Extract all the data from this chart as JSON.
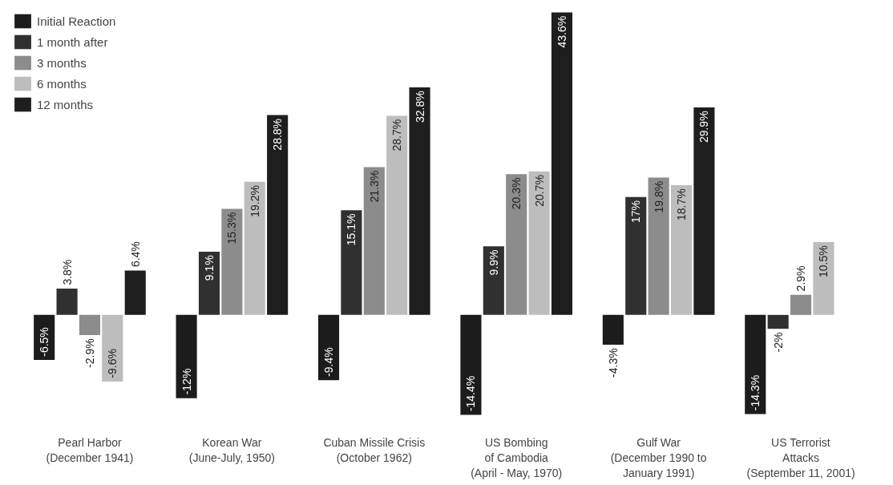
{
  "chart_data": {
    "type": "bar",
    "categories": [
      "Pearl Harbor\n(December 1941)",
      "Korean War\n(June-July, 1950)",
      "Cuban Missile Crisis\n(October 1962)",
      "US Bombing\nof Cambodia\n(April - May, 1970)",
      "Gulf War\n(December 1990 to\nJanuary 1991)",
      "US Terrorist\nAttacks\n(September 11, 2001)"
    ],
    "series": [
      {
        "name": "Initial Reaction",
        "color": "#1c1c1c",
        "values": [
          -6.5,
          -12,
          -9.4,
          -14.4,
          -4.3,
          -14.3
        ],
        "value_labels": [
          "-6.5%",
          "-12%",
          "-9.4%",
          "-14.4%",
          "-4.3%",
          "-14.3%"
        ]
      },
      {
        "name": "1 month after",
        "color": "#303030",
        "values": [
          3.8,
          9.1,
          15.1,
          9.9,
          17,
          -2
        ],
        "value_labels": [
          "3.8%",
          "9.1%",
          "15.1%",
          "9.9%",
          "17%",
          "-2%"
        ]
      },
      {
        "name": "3 months",
        "color": "#8c8c8c",
        "values": [
          -2.9,
          15.3,
          21.3,
          20.3,
          19.8,
          2.9
        ],
        "value_labels": [
          "-2.9%",
          "15.3%",
          "21.3%",
          "20.3%",
          "19.8%",
          "2.9%"
        ]
      },
      {
        "name": "6 months",
        "color": "#bdbdbd",
        "values": [
          -9.6,
          19.2,
          28.7,
          20.7,
          18.7,
          10.5
        ],
        "value_labels": [
          "-9.6%",
          "19.2%",
          "28.7%",
          "20.7%",
          "18.7%",
          "10.5%"
        ]
      },
      {
        "name": "12 months",
        "color": "#1e1e1e",
        "values": [
          6.4,
          28.8,
          32.8,
          43.6,
          29.9,
          null
        ],
        "value_labels": [
          "6.4%",
          "28.8%",
          "32.8%",
          "43.6%",
          "29.9%",
          null
        ]
      }
    ],
    "data_labels": true,
    "grid": false,
    "legend": "top left"
  }
}
